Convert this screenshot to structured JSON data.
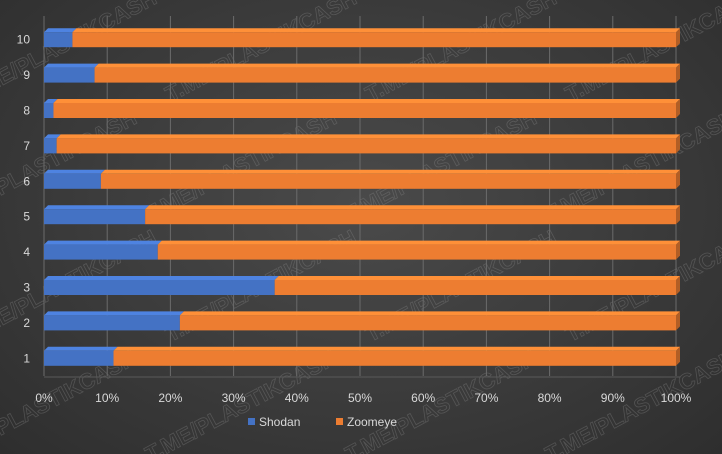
{
  "watermark": {
    "text": "T.ME/PLASTIKCASH"
  },
  "colors": {
    "shodan": "#4472c4",
    "zoomeye": "#ed7d31",
    "background": "#3b3b3b",
    "text": "#d9d9d9"
  },
  "chart_data": {
    "type": "bar",
    "orientation": "horizontal",
    "stacked": "100%",
    "title": "",
    "xlabel": "",
    "ylabel": "",
    "categories": [
      "1",
      "2",
      "3",
      "4",
      "5",
      "6",
      "7",
      "8",
      "9",
      "10"
    ],
    "x_ticks": [
      "0%",
      "10%",
      "20%",
      "30%",
      "40%",
      "50%",
      "60%",
      "70%",
      "80%",
      "90%",
      "100%"
    ],
    "xlim": [
      0,
      100
    ],
    "grid": true,
    "legend_position": "bottom",
    "series": [
      {
        "name": "Shodan",
        "values": [
          11,
          21.5,
          36.5,
          18,
          16,
          9,
          2,
          1.5,
          8,
          4.5
        ]
      },
      {
        "name": "Zoomeye",
        "values": [
          89,
          78.5,
          63.5,
          82,
          84,
          91,
          98,
          98.5,
          92,
          95.5
        ]
      }
    ]
  }
}
